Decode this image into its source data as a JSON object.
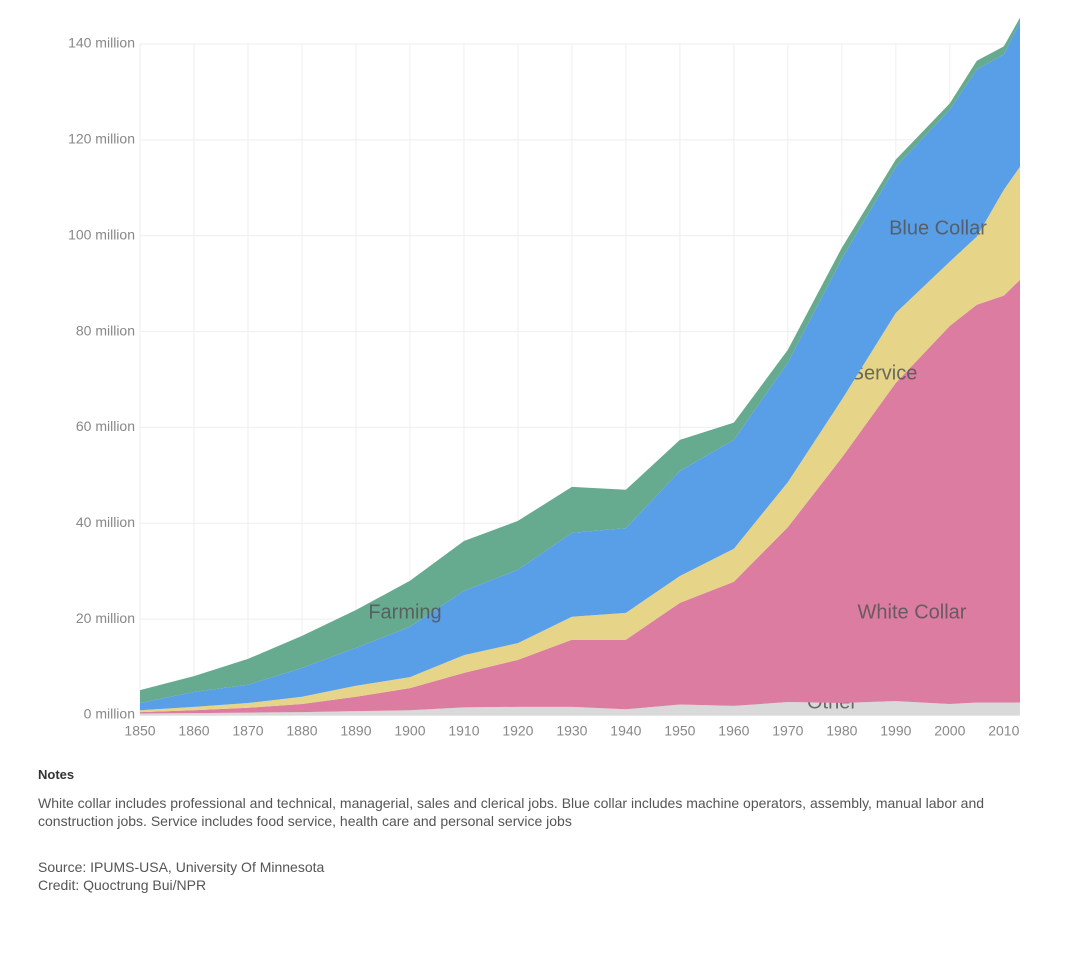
{
  "chart_data": {
    "type": "stacked-area",
    "x": [
      1850,
      1860,
      1870,
      1880,
      1890,
      1900,
      1910,
      1920,
      1930,
      1940,
      1950,
      1960,
      1970,
      1980,
      1990,
      2000,
      2005,
      2010,
      2013
    ],
    "xlim": [
      1850,
      2013
    ],
    "xticks": [
      1850,
      1860,
      1870,
      1880,
      1890,
      1900,
      1910,
      1920,
      1930,
      1940,
      1950,
      1960,
      1970,
      1980,
      1990,
      2000,
      2010
    ],
    "ylim": [
      0,
      140
    ],
    "yticks": [
      {
        "value": 0,
        "label": "0 million"
      },
      {
        "value": 20,
        "label": "20 million"
      },
      {
        "value": 40,
        "label": "40 million"
      },
      {
        "value": 60,
        "label": "60 million"
      },
      {
        "value": 80,
        "label": "80 million"
      },
      {
        "value": 100,
        "label": "100 million"
      },
      {
        "value": 120,
        "label": "120 million"
      },
      {
        "value": 140,
        "label": "140 million"
      }
    ],
    "grid": true,
    "series": [
      {
        "name": "Other",
        "color": "#d9d9d9",
        "values": [
          0.3,
          0.4,
          0.5,
          0.6,
          0.8,
          1.0,
          1.6,
          1.7,
          1.7,
          1.2,
          2.2,
          1.9,
          2.7,
          2.5,
          2.9,
          2.3,
          2.6,
          2.6,
          2.6
        ]
      },
      {
        "name": "White Collar",
        "color": "#dc7ca0",
        "values": [
          0.3,
          0.6,
          1.0,
          1.7,
          3.0,
          4.6,
          7.2,
          9.8,
          14.0,
          14.5,
          21.2,
          25.9,
          36.5,
          51.2,
          66.4,
          78.9,
          83.0,
          84.9,
          88.2
        ]
      },
      {
        "name": "Service",
        "color": "#e6d588",
        "values": [
          0.4,
          0.7,
          1.0,
          1.5,
          2.3,
          2.3,
          3.7,
          3.5,
          4.8,
          5.6,
          5.6,
          6.9,
          9.4,
          12.1,
          14.6,
          13.4,
          14.2,
          22.1,
          23.6
        ]
      },
      {
        "name": "Blue Collar",
        "color": "#589fe8",
        "values": [
          1.5,
          3.1,
          3.8,
          6.0,
          7.9,
          10.5,
          13.4,
          15.3,
          17.5,
          17.7,
          21.9,
          22.7,
          24.9,
          29.4,
          30.5,
          31.7,
          34.9,
          28.2,
          30.3
        ]
      },
      {
        "name": "Farming",
        "color": "#66ab8f",
        "values": [
          2.7,
          3.3,
          5.4,
          6.7,
          7.9,
          9.6,
          10.4,
          10.2,
          9.6,
          8.0,
          6.5,
          3.6,
          2.7,
          2.3,
          1.5,
          1.3,
          1.8,
          1.7,
          0.8
        ]
      }
    ]
  },
  "notes": {
    "heading": "Notes",
    "body": "White collar includes professional and technical, managerial, sales and clerical jobs. Blue collar includes machine operators, assembly, manual labor and construction jobs. Service includes food service, health care and personal service jobs",
    "source": "Source: IPUMS-USA, University Of Minnesota",
    "credit": "Credit: Quoctrung Bui/NPR"
  }
}
